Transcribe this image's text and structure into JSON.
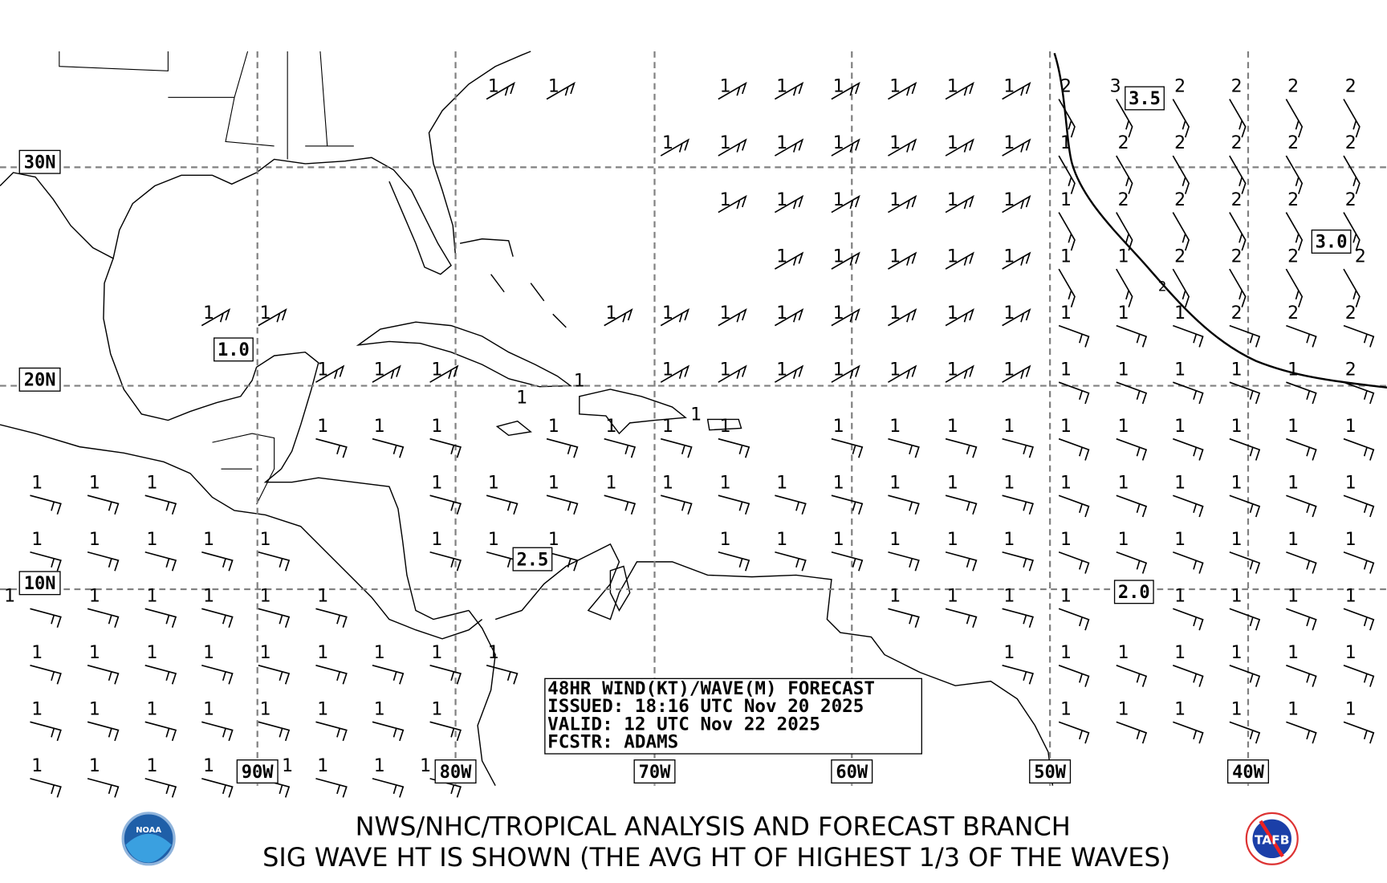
{
  "map": {
    "lat_labels": [
      "30N",
      "20N",
      "10N"
    ],
    "lon_labels": [
      "90W",
      "80W",
      "70W",
      "60W",
      "50W",
      "40W"
    ],
    "contour_labels": [
      "3.5",
      "3.0",
      "1.0",
      "2.5",
      "2.0",
      "2"
    ],
    "wave_rows": [
      [
        null,
        null,
        null,
        null,
        null,
        null,
        null,
        null,
        1,
        1,
        null,
        null,
        1,
        1,
        1,
        1,
        1,
        1,
        2,
        3,
        2,
        2,
        2,
        2
      ],
      [
        null,
        null,
        null,
        null,
        null,
        null,
        null,
        null,
        null,
        null,
        null,
        1,
        1,
        1,
        1,
        1,
        1,
        1,
        1,
        2,
        2,
        2,
        2,
        2
      ],
      [
        null,
        null,
        null,
        null,
        null,
        null,
        null,
        null,
        null,
        null,
        null,
        null,
        1,
        1,
        1,
        1,
        1,
        1,
        1,
        2,
        2,
        2,
        2,
        2
      ],
      [
        null,
        null,
        null,
        null,
        null,
        null,
        null,
        null,
        null,
        null,
        null,
        null,
        null,
        1,
        1,
        1,
        1,
        1,
        1,
        1,
        2,
        2,
        2,
        2
      ],
      [
        null,
        null,
        null,
        1,
        1,
        null,
        null,
        null,
        null,
        null,
        1,
        1,
        1,
        1,
        1,
        1,
        1,
        1,
        1,
        1,
        1,
        2,
        2,
        2
      ],
      [
        null,
        null,
        null,
        null,
        null,
        1,
        1,
        1,
        null,
        null,
        null,
        1,
        1,
        1,
        1,
        1,
        1,
        1,
        1,
        1,
        1,
        1,
        1,
        2
      ],
      [
        null,
        null,
        null,
        null,
        null,
        1,
        1,
        1,
        null,
        1,
        1,
        1,
        1,
        null,
        1,
        1,
        1,
        1,
        1,
        1,
        1,
        1,
        1,
        1
      ],
      [
        1,
        1,
        1,
        null,
        null,
        null,
        null,
        1,
        1,
        1,
        1,
        1,
        1,
        1,
        1,
        1,
        1,
        1,
        1,
        1,
        1,
        1,
        1,
        1
      ],
      [
        1,
        1,
        1,
        1,
        1,
        null,
        null,
        1,
        1,
        1,
        null,
        null,
        1,
        1,
        1,
        1,
        1,
        1,
        1,
        1,
        1,
        1,
        1,
        1
      ],
      [
        1,
        1,
        1,
        1,
        1,
        1,
        null,
        null,
        null,
        null,
        null,
        null,
        null,
        null,
        null,
        1,
        1,
        1,
        1,
        null,
        1,
        1,
        1,
        1
      ],
      [
        1,
        1,
        1,
        1,
        1,
        1,
        1,
        1,
        1,
        null,
        null,
        null,
        null,
        null,
        null,
        null,
        null,
        1,
        1,
        1,
        1,
        1,
        1,
        1
      ],
      [
        1,
        1,
        1,
        1,
        1,
        1,
        1,
        1,
        null,
        null,
        null,
        null,
        null,
        null,
        null,
        null,
        null,
        null,
        1,
        1,
        1,
        1,
        1,
        1
      ],
      [
        1,
        1,
        1,
        1,
        1,
        1,
        1,
        1,
        null,
        null,
        null,
        null,
        null,
        null,
        null,
        null,
        null,
        null,
        null,
        null,
        null,
        null,
        null,
        null
      ]
    ],
    "extra_values": [
      1,
      1,
      1
    ]
  },
  "info_box": {
    "line1": "48HR WIND(KT)/WAVE(M) FORECAST",
    "line2": "ISSUED: 18:16 UTC Nov 20 2025",
    "line3": "VALID: 12 UTC Nov 22 2025",
    "line4": "FCSTR: ADAMS"
  },
  "footer": {
    "line1": "NWS/NHC/TROPICAL ANALYSIS AND FORECAST BRANCH",
    "line2": "SIG WAVE HT IS SHOWN (THE AVG HT OF HIGHEST 1/3 OF THE WAVES)",
    "logo_left": "NOAA",
    "logo_right": "TAFB"
  }
}
